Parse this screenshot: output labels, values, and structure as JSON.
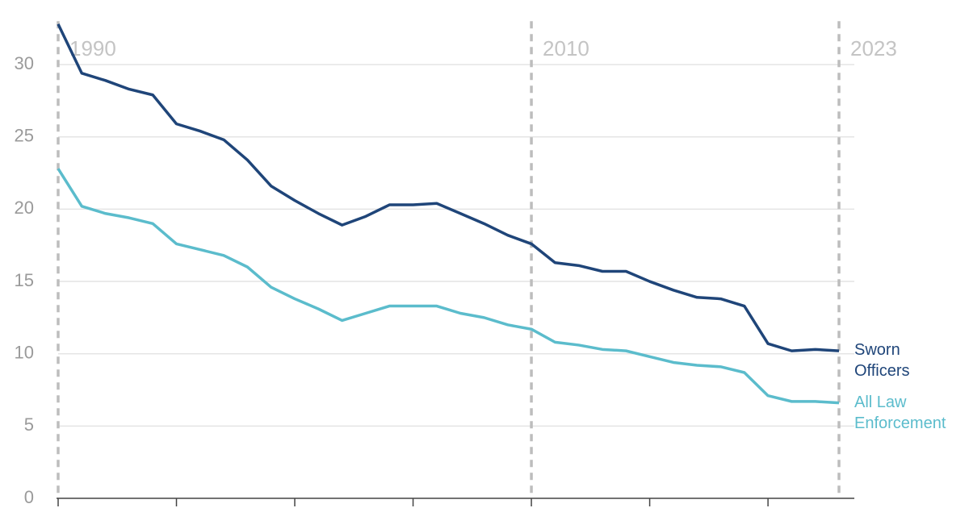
{
  "chart_data": {
    "type": "line",
    "x": [
      1990,
      1991,
      1992,
      1993,
      1994,
      1995,
      1996,
      1997,
      1998,
      1999,
      2000,
      2001,
      2002,
      2003,
      2004,
      2005,
      2006,
      2007,
      2008,
      2009,
      2010,
      2011,
      2012,
      2013,
      2014,
      2015,
      2016,
      2017,
      2018,
      2019,
      2020,
      2021,
      2022,
      2023
    ],
    "series": [
      {
        "name": "Sworn Officers",
        "color": "#1f4579",
        "values": [
          32.8,
          29.4,
          28.9,
          28.3,
          27.9,
          25.9,
          25.4,
          24.8,
          23.4,
          21.6,
          20.6,
          19.7,
          18.9,
          19.5,
          20.3,
          20.3,
          20.4,
          19.7,
          19.0,
          18.2,
          17.6,
          16.3,
          16.1,
          15.7,
          15.7,
          15.0,
          14.4,
          13.9,
          13.8,
          13.3,
          10.7,
          10.2,
          10.3,
          10.2
        ]
      },
      {
        "name": "All Law Enforcement",
        "color": "#5bbccc",
        "values": [
          22.8,
          20.2,
          19.7,
          19.4,
          19.0,
          17.6,
          17.2,
          16.8,
          16.0,
          14.6,
          13.8,
          13.1,
          12.3,
          12.8,
          13.3,
          13.3,
          13.3,
          12.8,
          12.5,
          12.0,
          11.7,
          10.8,
          10.6,
          10.3,
          10.2,
          9.8,
          9.4,
          9.2,
          9.1,
          8.7,
          7.1,
          6.7,
          6.7,
          6.6
        ]
      }
    ],
    "xlim": [
      1990,
      2023
    ],
    "xticks": [
      1990,
      1995,
      2000,
      2005,
      2010,
      2015,
      2020
    ],
    "ylim": [
      0,
      33
    ],
    "yticks": [
      0,
      5,
      10,
      15,
      20,
      25,
      30
    ],
    "grid": true,
    "reference_lines": [
      1990,
      2010,
      2023
    ]
  }
}
